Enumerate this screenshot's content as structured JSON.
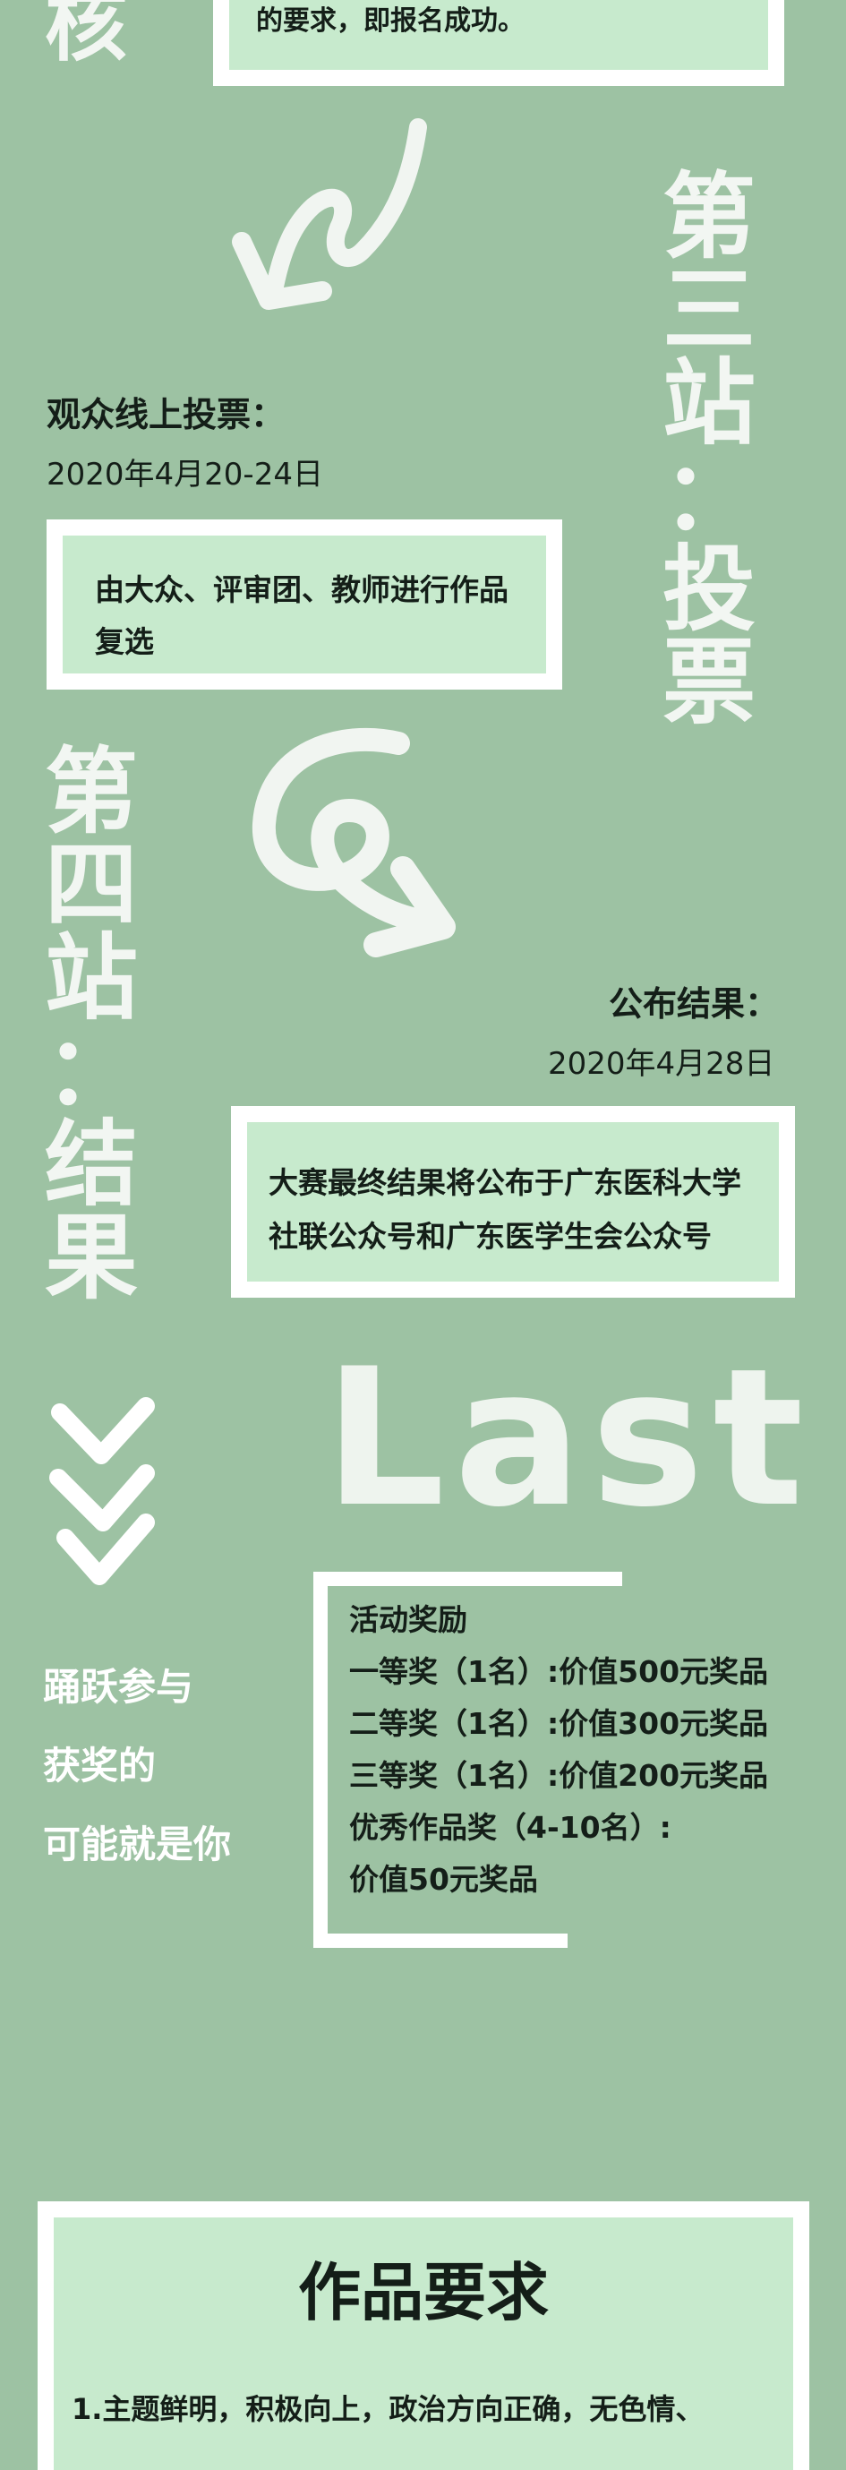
{
  "top": {
    "side_char": "核",
    "box_text": "的要求，即报名成功。"
  },
  "station3": {
    "title_chars": [
      "第",
      "三",
      "站",
      "：",
      "投",
      "票"
    ],
    "heading": "观众线上投票：",
    "date": "2020年4月20-24日",
    "box_text": "由大众、评审团、教师进行作品复选"
  },
  "station4": {
    "title_chars": [
      "第",
      "四",
      "站",
      "：",
      "结",
      "果"
    ],
    "heading": "公布结果：",
    "date": "2020年4月28日",
    "box_text": "大赛最终结果将公布于广东医科大学社联公众号和广东医学生会公众号"
  },
  "last": {
    "big_word": "Last",
    "slogan": [
      "踊跃参与",
      "获奖的",
      "可能就是你"
    ],
    "awards_title": "活动奖励",
    "awards": [
      "一等奖（1名）:价值500元奖品",
      "二等奖（1名）:价值300元奖品",
      "三等奖（1名）:价值200元奖品",
      "优秀作品奖（4-10名）:",
      "价值50元奖品"
    ]
  },
  "requirements": {
    "title": "作品要求",
    "first_line": "1.主题鲜明，积极向上，政治方向正确，无色情、"
  },
  "colors": {
    "background": "#9dc2a3",
    "panel": "#c7eacd",
    "frame": "#ffffff",
    "text_dark": "#141e18"
  }
}
